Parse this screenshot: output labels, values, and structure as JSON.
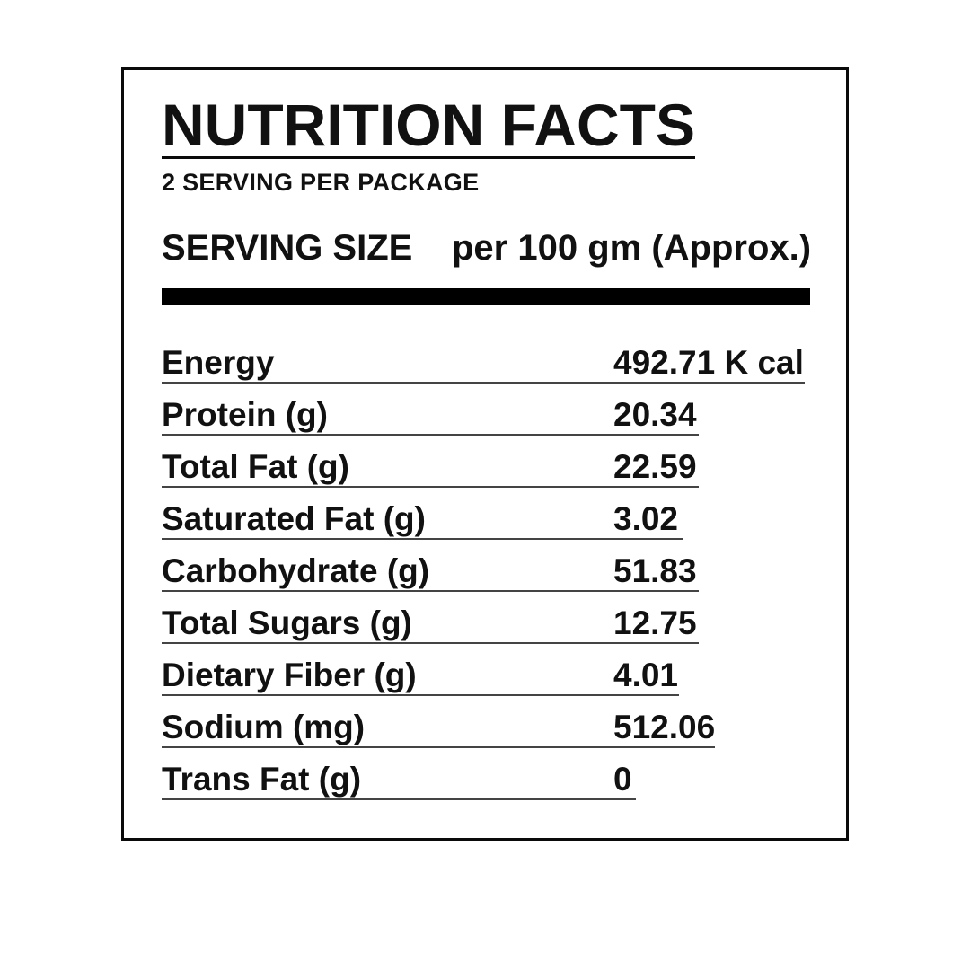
{
  "label": {
    "title": "NUTRITION FACTS",
    "servings_per_package": "2 SERVING PER PACKAGE",
    "serving_size_label": "SERVING SIZE",
    "serving_size_value": "per 100 gm (Approx.)",
    "rows": [
      {
        "name": "Energy",
        "value": "492.71 K cal"
      },
      {
        "name": "Protein (g)",
        "value": "20.34"
      },
      {
        "name": "Total Fat (g)",
        "value": "22.59"
      },
      {
        "name": "Saturated Fat (g)",
        "value": "3.02"
      },
      {
        "name": "Carbohydrate (g)",
        "value": "51.83"
      },
      {
        "name": "Total Sugars (g)",
        "value": "12.75"
      },
      {
        "name": "Dietary Fiber (g)",
        "value": "4.01"
      },
      {
        "name": "Sodium (mg)",
        "value": "512.06"
      },
      {
        "name": "Trans Fat (g)",
        "value": "0"
      }
    ],
    "colors": {
      "text": "#111111",
      "rule": "#444444",
      "bar": "#000000",
      "border": "#0a0a0a",
      "background": "#ffffff"
    }
  }
}
